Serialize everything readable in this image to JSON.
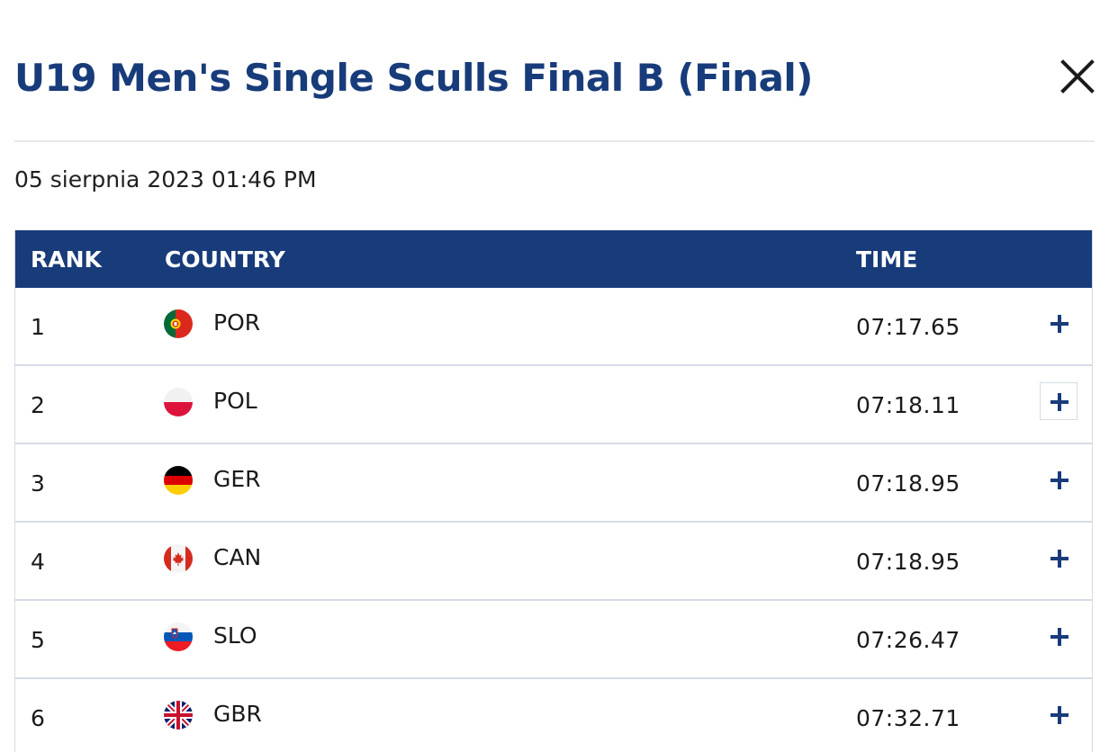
{
  "header": {
    "title": "U19 Men's Single Sculls Final B (Final)",
    "close_icon": "close-icon"
  },
  "event": {
    "date": "05 sierpnia 2023 01:46 PM"
  },
  "table": {
    "columns": {
      "rank": "RANK",
      "country": "COUNTRY",
      "time": "TIME"
    },
    "rows": [
      {
        "rank": "1",
        "country": "POR",
        "time": "07:17.65",
        "flag_icon": "portugal-flag-icon",
        "expand_icon": "plus-icon"
      },
      {
        "rank": "2",
        "country": "POL",
        "time": "07:18.11",
        "flag_icon": "poland-flag-icon",
        "expand_icon": "plus-icon"
      },
      {
        "rank": "3",
        "country": "GER",
        "time": "07:18.95",
        "flag_icon": "germany-flag-icon",
        "expand_icon": "plus-icon"
      },
      {
        "rank": "4",
        "country": "CAN",
        "time": "07:18.95",
        "flag_icon": "canada-flag-icon",
        "expand_icon": "plus-icon"
      },
      {
        "rank": "5",
        "country": "SLO",
        "time": "07:26.47",
        "flag_icon": "slovenia-flag-icon",
        "expand_icon": "plus-icon"
      },
      {
        "rank": "6",
        "country": "GBR",
        "time": "07:32.71",
        "flag_icon": "uk-flag-icon",
        "expand_icon": "plus-icon"
      }
    ]
  },
  "colors": {
    "brand": "#183b7a",
    "header_text": "#ffffff",
    "row_border": "#d6dbe6"
  }
}
